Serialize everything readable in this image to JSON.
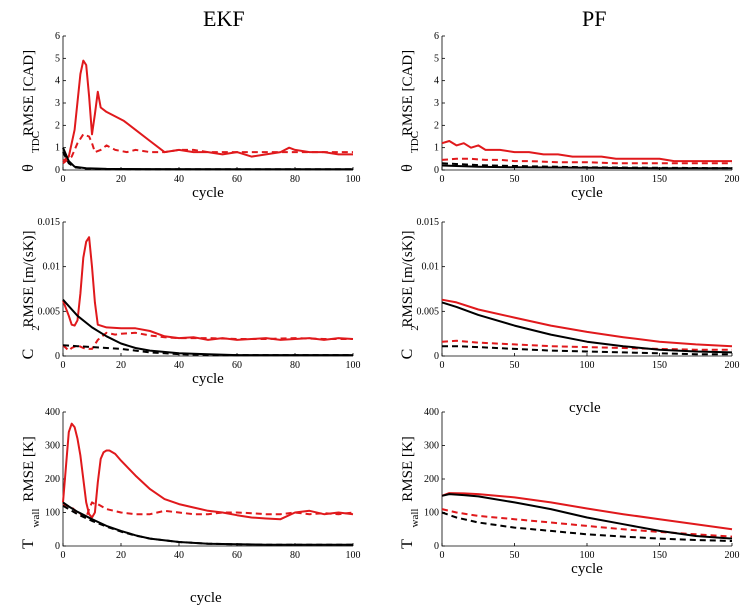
{
  "columns": [
    "EKF",
    "PF"
  ],
  "stray_labels": {
    "pf_middle_cycle": "cycle",
    "bottom_cycle": "cycle"
  },
  "colors": {
    "red": "#e0191c",
    "black": "#000000"
  },
  "chart_data": [
    {
      "type": "line",
      "column": "EKF",
      "xlabel": "cycle",
      "ylabel_main": "RMSE [CAD]",
      "ylabel_sym": "θ",
      "ylabel_sub": "TDC",
      "xlim": [
        0,
        100
      ],
      "ylim": [
        0,
        6
      ],
      "xticks": [
        "0",
        "20",
        "40",
        "60",
        "80",
        "100"
      ],
      "yticks": [
        "0",
        "1",
        "2",
        "3",
        "4",
        "5",
        "6"
      ],
      "series": [
        {
          "color": "red",
          "dash": false,
          "x": [
            0,
            2,
            4,
            6,
            7,
            8,
            9,
            10,
            11,
            12,
            13,
            15,
            18,
            21,
            25,
            30,
            35,
            40,
            45,
            50,
            55,
            60,
            65,
            70,
            75,
            78,
            80,
            85,
            90,
            95,
            100
          ],
          "y": [
            0.4,
            0.6,
            1.8,
            4.3,
            4.9,
            4.7,
            3.3,
            1.6,
            2.5,
            3.5,
            2.8,
            2.6,
            2.4,
            2.2,
            1.8,
            1.3,
            0.8,
            0.9,
            0.8,
            0.8,
            0.7,
            0.8,
            0.6,
            0.7,
            0.8,
            1.0,
            0.9,
            0.8,
            0.8,
            0.7,
            0.7
          ]
        },
        {
          "color": "red",
          "dash": true,
          "x": [
            0,
            3,
            5,
            7,
            9,
            10,
            11,
            13,
            15,
            18,
            22,
            25,
            30,
            35,
            40,
            45,
            50,
            55,
            60,
            65,
            70,
            75,
            80,
            85,
            90,
            95,
            100
          ],
          "y": [
            0.3,
            0.6,
            1.2,
            1.6,
            1.5,
            1.2,
            0.8,
            0.9,
            1.1,
            0.9,
            0.8,
            0.9,
            0.8,
            0.8,
            0.9,
            0.9,
            0.8,
            0.8,
            0.8,
            0.8,
            0.8,
            0.8,
            0.8,
            0.8,
            0.8,
            0.8,
            0.8
          ]
        },
        {
          "color": "black",
          "dash": false,
          "x": [
            0,
            2,
            4,
            8,
            15,
            30,
            60,
            100
          ],
          "y": [
            1.0,
            0.4,
            0.15,
            0.08,
            0.05,
            0.04,
            0.03,
            0.03
          ]
        },
        {
          "color": "black",
          "dash": true,
          "x": [
            0,
            2,
            4,
            8,
            15,
            30,
            60,
            100
          ],
          "y": [
            0.8,
            0.3,
            0.12,
            0.06,
            0.04,
            0.03,
            0.03,
            0.03
          ]
        }
      ]
    },
    {
      "type": "line",
      "column": "PF",
      "xlabel": "cycle",
      "ylabel_main": "RMSE [CAD]",
      "ylabel_sym": "θ",
      "ylabel_sub": "TDC",
      "xlim": [
        0,
        200
      ],
      "ylim": [
        0,
        6
      ],
      "xticks": [
        "0",
        "50",
        "100",
        "150",
        "200"
      ],
      "yticks": [
        "0",
        "1",
        "2",
        "3",
        "4",
        "5",
        "6"
      ],
      "series": [
        {
          "color": "red",
          "dash": false,
          "x": [
            0,
            5,
            10,
            15,
            20,
            25,
            30,
            40,
            50,
            60,
            70,
            80,
            90,
            100,
            110,
            120,
            130,
            140,
            150,
            160,
            170,
            180,
            190,
            200
          ],
          "y": [
            1.2,
            1.3,
            1.1,
            1.2,
            1.0,
            1.1,
            0.9,
            0.9,
            0.8,
            0.8,
            0.7,
            0.7,
            0.6,
            0.6,
            0.6,
            0.5,
            0.5,
            0.5,
            0.5,
            0.4,
            0.4,
            0.4,
            0.4,
            0.4
          ]
        },
        {
          "color": "red",
          "dash": true,
          "x": [
            0,
            10,
            20,
            30,
            40,
            50,
            60,
            80,
            100,
            120,
            140,
            160,
            180,
            200
          ],
          "y": [
            0.45,
            0.5,
            0.5,
            0.45,
            0.45,
            0.4,
            0.4,
            0.35,
            0.35,
            0.3,
            0.3,
            0.3,
            0.3,
            0.3
          ]
        },
        {
          "color": "black",
          "dash": false,
          "x": [
            0,
            25,
            50,
            100,
            150,
            200
          ],
          "y": [
            0.2,
            0.15,
            0.12,
            0.1,
            0.08,
            0.08
          ]
        },
        {
          "color": "black",
          "dash": true,
          "x": [
            0,
            25,
            50,
            100,
            150,
            200
          ],
          "y": [
            0.3,
            0.22,
            0.18,
            0.12,
            0.1,
            0.08
          ]
        }
      ]
    },
    {
      "type": "line",
      "column": "EKF",
      "xlabel": "cycle",
      "ylabel_main": "RMSE [m/(sK)]",
      "ylabel_sym": "C",
      "ylabel_sub": "2",
      "xlim": [
        0,
        100
      ],
      "ylim": [
        0,
        0.015
      ],
      "xticks": [
        "0",
        "20",
        "40",
        "60",
        "80",
        "100"
      ],
      "yticks": [
        "0",
        "0.005",
        "0.01",
        "0.015"
      ],
      "series": [
        {
          "color": "red",
          "dash": false,
          "x": [
            0,
            2,
            3,
            4,
            5,
            6,
            7,
            8,
            9,
            10,
            11,
            12,
            15,
            20,
            25,
            30,
            35,
            40,
            45,
            50,
            55,
            60,
            65,
            70,
            75,
            80,
            85,
            90,
            95,
            100
          ],
          "y": [
            0.0062,
            0.0045,
            0.0035,
            0.0034,
            0.004,
            0.007,
            0.011,
            0.0128,
            0.0133,
            0.01,
            0.006,
            0.0035,
            0.0032,
            0.0031,
            0.0031,
            0.0028,
            0.0022,
            0.002,
            0.0021,
            0.0018,
            0.002,
            0.0018,
            0.0019,
            0.002,
            0.0018,
            0.0019,
            0.002,
            0.0018,
            0.002,
            0.0019
          ]
        },
        {
          "color": "red",
          "dash": true,
          "x": [
            0,
            2,
            3,
            5,
            7,
            9,
            10,
            12,
            15,
            18,
            20,
            25,
            30,
            35,
            40,
            50,
            60,
            70,
            80,
            90,
            100
          ],
          "y": [
            0.0012,
            0.0006,
            0.0009,
            0.0012,
            0.0009,
            0.0008,
            0.0008,
            0.0018,
            0.0026,
            0.0024,
            0.0025,
            0.0026,
            0.0023,
            0.0021,
            0.002,
            0.002,
            0.0019,
            0.0019,
            0.002,
            0.0019,
            0.0019
          ]
        },
        {
          "color": "black",
          "dash": false,
          "x": [
            0,
            5,
            10,
            15,
            20,
            25,
            30,
            40,
            50,
            60,
            80,
            100
          ],
          "y": [
            0.0063,
            0.0045,
            0.0032,
            0.0022,
            0.0014,
            0.0009,
            0.0006,
            0.0003,
            0.0002,
            0.0001,
            0.0001,
            0.0001
          ]
        },
        {
          "color": "black",
          "dash": true,
          "x": [
            0,
            5,
            10,
            15,
            20,
            25,
            30,
            40,
            50,
            60,
            80,
            100
          ],
          "y": [
            0.0012,
            0.0011,
            0.001,
            0.0009,
            0.0008,
            0.0006,
            0.0004,
            0.0002,
            0.0001,
            0.0001,
            0.0001,
            0.0001
          ]
        }
      ]
    },
    {
      "type": "line",
      "column": "PF",
      "xlabel": "",
      "ylabel_main": "RMSE [m/(sK)]",
      "ylabel_sym": "C",
      "ylabel_sub": "2",
      "xlim": [
        0,
        200
      ],
      "ylim": [
        0,
        0.015
      ],
      "xticks": [
        "0",
        "50",
        "100",
        "150",
        "200"
      ],
      "yticks": [
        "0",
        "0.005",
        "0.01",
        "0.015"
      ],
      "series": [
        {
          "color": "red",
          "dash": false,
          "x": [
            0,
            10,
            25,
            50,
            75,
            100,
            125,
            150,
            175,
            200
          ],
          "y": [
            0.0063,
            0.006,
            0.0052,
            0.0043,
            0.0034,
            0.0027,
            0.0021,
            0.0016,
            0.0013,
            0.0011
          ]
        },
        {
          "color": "red",
          "dash": true,
          "x": [
            0,
            10,
            25,
            50,
            75,
            100,
            125,
            150,
            175,
            200
          ],
          "y": [
            0.0016,
            0.0017,
            0.0015,
            0.0013,
            0.0011,
            0.001,
            0.0009,
            0.0008,
            0.0007,
            0.0007
          ]
        },
        {
          "color": "black",
          "dash": false,
          "x": [
            0,
            10,
            25,
            50,
            75,
            100,
            125,
            150,
            175,
            200
          ],
          "y": [
            0.006,
            0.0055,
            0.0046,
            0.0034,
            0.0024,
            0.0016,
            0.0011,
            0.0007,
            0.0005,
            0.0004
          ]
        },
        {
          "color": "black",
          "dash": true,
          "x": [
            0,
            10,
            25,
            50,
            75,
            100,
            125,
            150,
            175,
            200
          ],
          "y": [
            0.0011,
            0.0011,
            0.001,
            0.0008,
            0.0006,
            0.0005,
            0.0004,
            0.0003,
            0.0002,
            0.0002
          ]
        }
      ]
    },
    {
      "type": "line",
      "column": "EKF",
      "xlabel": "",
      "ylabel_main": "RMSE [K]",
      "ylabel_sym": "T",
      "ylabel_sub": "wall",
      "xlim": [
        0,
        100
      ],
      "ylim": [
        0,
        400
      ],
      "xticks": [
        "0",
        "20",
        "40",
        "60",
        "80",
        "100"
      ],
      "yticks": [
        "0",
        "100",
        "200",
        "300",
        "400"
      ],
      "series": [
        {
          "color": "red",
          "dash": false,
          "x": [
            0,
            2,
            3,
            4,
            5,
            6,
            7,
            8,
            9,
            10,
            11,
            12,
            13,
            14,
            15,
            16,
            18,
            20,
            25,
            30,
            35,
            40,
            45,
            50,
            55,
            60,
            65,
            70,
            75,
            80,
            85,
            90,
            95,
            100
          ],
          "y": [
            130,
            340,
            365,
            355,
            320,
            270,
            200,
            130,
            95,
            85,
            100,
            190,
            260,
            280,
            285,
            285,
            275,
            255,
            210,
            170,
            140,
            125,
            115,
            105,
            100,
            92,
            85,
            82,
            80,
            100,
            105,
            95,
            100,
            95
          ]
        },
        {
          "color": "red",
          "dash": true,
          "x": [
            0,
            3,
            5,
            7,
            8,
            9,
            10,
            11,
            12,
            15,
            20,
            25,
            30,
            35,
            40,
            45,
            50,
            55,
            60,
            65,
            70,
            75,
            80,
            85,
            90,
            95,
            100
          ],
          "y": [
            125,
            115,
            100,
            90,
            85,
            110,
            130,
            125,
            125,
            110,
            100,
            95,
            95,
            105,
            100,
            95,
            95,
            100,
            100,
            98,
            95,
            95,
            100,
            95,
            98,
            95,
            100
          ]
        },
        {
          "color": "black",
          "dash": false,
          "x": [
            0,
            2,
            5,
            10,
            15,
            20,
            25,
            30,
            40,
            50,
            60,
            70,
            80,
            90,
            100
          ],
          "y": [
            130,
            118,
            102,
            80,
            60,
            45,
            32,
            22,
            12,
            7,
            5,
            4,
            4,
            4,
            4
          ]
        },
        {
          "color": "black",
          "dash": true,
          "x": [
            0,
            2,
            5,
            10,
            15,
            20,
            25,
            30,
            40,
            50,
            60,
            70,
            80,
            90,
            100
          ],
          "y": [
            120,
            110,
            95,
            75,
            58,
            43,
            31,
            22,
            12,
            7,
            5,
            4,
            4,
            4,
            4
          ]
        }
      ]
    },
    {
      "type": "line",
      "column": "PF",
      "xlabel": "cycle",
      "ylabel_main": "RMSE [K]",
      "ylabel_sym": "T",
      "ylabel_sub": "wall",
      "xlim": [
        0,
        200
      ],
      "ylim": [
        0,
        400
      ],
      "xticks": [
        "0",
        "50",
        "100",
        "150",
        "200"
      ],
      "yticks": [
        "0",
        "100",
        "200",
        "300",
        "400"
      ],
      "series": [
        {
          "color": "red",
          "dash": false,
          "x": [
            0,
            5,
            15,
            25,
            50,
            75,
            100,
            125,
            150,
            175,
            200
          ],
          "y": [
            150,
            158,
            157,
            155,
            145,
            130,
            112,
            95,
            80,
            65,
            50
          ]
        },
        {
          "color": "red",
          "dash": true,
          "x": [
            0,
            10,
            25,
            50,
            75,
            100,
            125,
            150,
            175,
            200
          ],
          "y": [
            110,
            100,
            90,
            80,
            70,
            60,
            50,
            42,
            35,
            28
          ]
        },
        {
          "color": "black",
          "dash": false,
          "x": [
            0,
            5,
            15,
            25,
            50,
            75,
            100,
            125,
            150,
            175,
            200
          ],
          "y": [
            150,
            155,
            152,
            148,
            130,
            110,
            85,
            65,
            45,
            30,
            22
          ]
        },
        {
          "color": "black",
          "dash": true,
          "x": [
            0,
            10,
            25,
            50,
            75,
            100,
            125,
            150,
            175,
            200
          ],
          "y": [
            100,
            85,
            70,
            55,
            45,
            35,
            28,
            22,
            18,
            15
          ]
        }
      ]
    }
  ]
}
